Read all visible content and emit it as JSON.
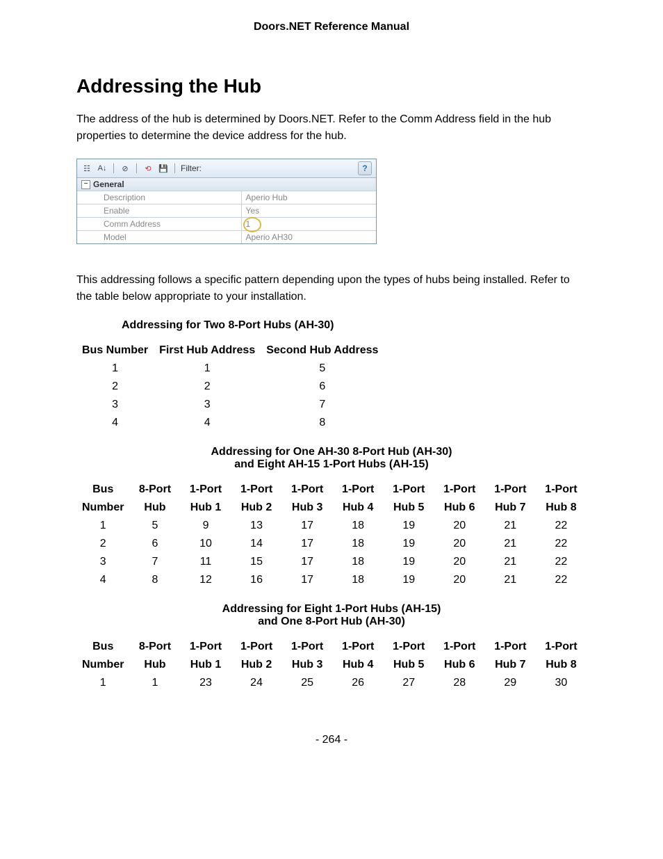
{
  "doc_header": "Doors.NET Reference Manual",
  "page_title": "Addressing the Hub",
  "intro_paragraph": "The address of the hub is determined by Doors.NET. Refer to the Comm Address field in the hub properties to determine the device address for the hub.",
  "props_toolbar": {
    "filter_label": "Filter:"
  },
  "props_section_label": "General",
  "props_rows": [
    {
      "label": "Description",
      "value": "Aperio Hub"
    },
    {
      "label": "Enable",
      "value": "Yes"
    },
    {
      "label": "Comm Address",
      "value": "1"
    },
    {
      "label": "Model",
      "value": "Aperio AH30"
    }
  ],
  "body_paragraph_2": "This addressing follows a specific pattern depending upon the types of hubs being installed. Refer to the table below appropriate to your installation.",
  "table1": {
    "title": "Addressing for Two 8-Port Hubs (AH-30)",
    "columns": [
      "Bus Number",
      "First Hub Address",
      "Second Hub Address"
    ],
    "rows": [
      [
        "1",
        "1",
        "5"
      ],
      [
        "2",
        "2",
        "6"
      ],
      [
        "3",
        "3",
        "7"
      ],
      [
        "4",
        "4",
        "8"
      ]
    ]
  },
  "table2": {
    "title_line1": "Addressing for One AH-30 8-Port Hub (AH-30)",
    "title_line2": "and Eight AH-15 1-Port Hubs (AH-15)",
    "header_line1": [
      "Bus",
      "8-Port",
      "1-Port",
      "1-Port",
      "1-Port",
      "1-Port",
      "1-Port",
      "1-Port",
      "1-Port",
      "1-Port"
    ],
    "header_line2": [
      "Number",
      "Hub",
      "Hub 1",
      "Hub 2",
      "Hub 3",
      "Hub 4",
      "Hub 5",
      "Hub 6",
      "Hub 7",
      "Hub 8"
    ],
    "rows": [
      [
        "1",
        "5",
        "9",
        "13",
        "17",
        "18",
        "19",
        "20",
        "21",
        "22"
      ],
      [
        "2",
        "6",
        "10",
        "14",
        "17",
        "18",
        "19",
        "20",
        "21",
        "22"
      ],
      [
        "3",
        "7",
        "11",
        "15",
        "17",
        "18",
        "19",
        "20",
        "21",
        "22"
      ],
      [
        "4",
        "8",
        "12",
        "16",
        "17",
        "18",
        "19",
        "20",
        "21",
        "22"
      ]
    ]
  },
  "table3": {
    "title_line1": "Addressing for Eight 1-Port Hubs (AH-15)",
    "title_line2": "and One 8-Port Hub (AH-30)",
    "header_line1": [
      "Bus",
      "8-Port",
      "1-Port",
      "1-Port",
      "1-Port",
      "1-Port",
      "1-Port",
      "1-Port",
      "1-Port",
      "1-Port"
    ],
    "header_line2": [
      "Number",
      "Hub",
      "Hub 1",
      "Hub 2",
      "Hub 3",
      "Hub 4",
      "Hub 5",
      "Hub 6",
      "Hub 7",
      "Hub 8"
    ],
    "rows": [
      [
        "1",
        "1",
        "23",
        "24",
        "25",
        "26",
        "27",
        "28",
        "29",
        "30"
      ]
    ]
  },
  "page_number": "- 264 -"
}
